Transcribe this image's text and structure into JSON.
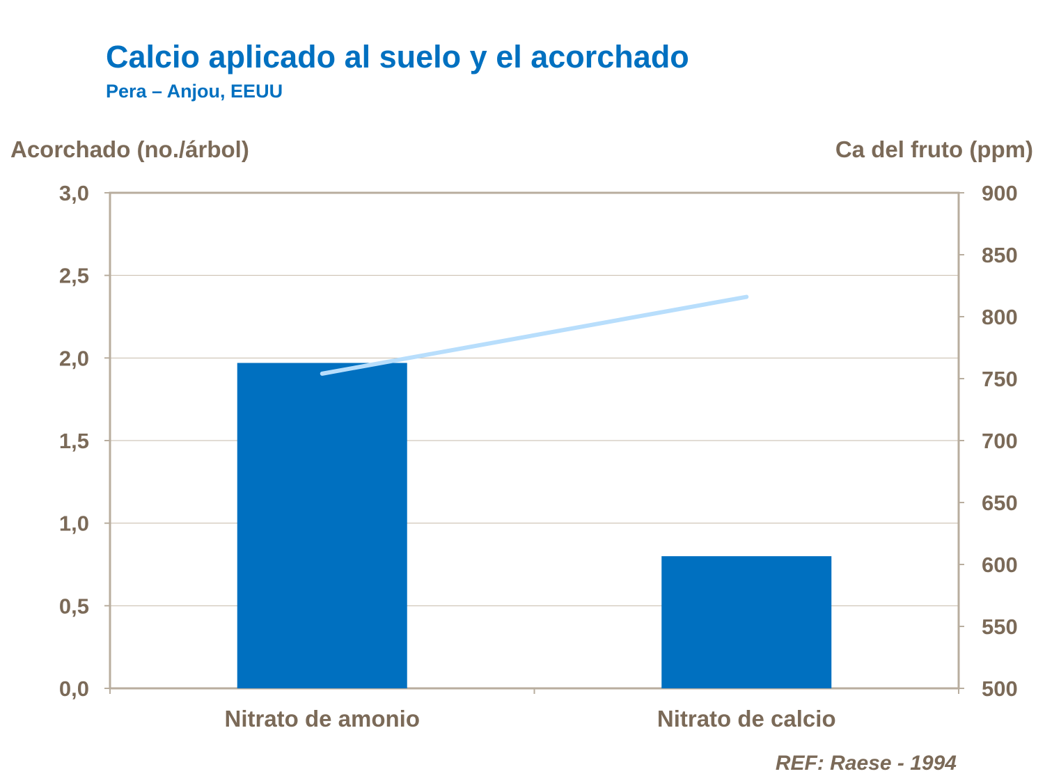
{
  "chart_data": {
    "type": "bar+line",
    "title": "Calcio aplicado al suelo y el acorchado",
    "subtitle": "Pera – Anjou, EEUU",
    "ylabel": "Acorchado (no./árbol)",
    "y2label": "Ca del fruto (ppm)",
    "categories": [
      "Nitrato de amonio",
      "Nitrato de calcio"
    ],
    "bars": {
      "values": [
        1.97,
        0.8
      ],
      "color": "#0070C0"
    },
    "line": {
      "values": [
        754,
        816
      ],
      "color": "#B8DEFC"
    },
    "ylim": [
      0,
      3
    ],
    "yticks": [
      "0,0",
      "0,5",
      "1,0",
      "1,5",
      "2,0",
      "2,5",
      "3,0"
    ],
    "y2lim": [
      500,
      900
    ],
    "y2ticks": [
      "500",
      "550",
      "600",
      "650",
      "700",
      "750",
      "800",
      "850",
      "900"
    ],
    "grid": true,
    "reference": "REF: Raese - 1994"
  }
}
